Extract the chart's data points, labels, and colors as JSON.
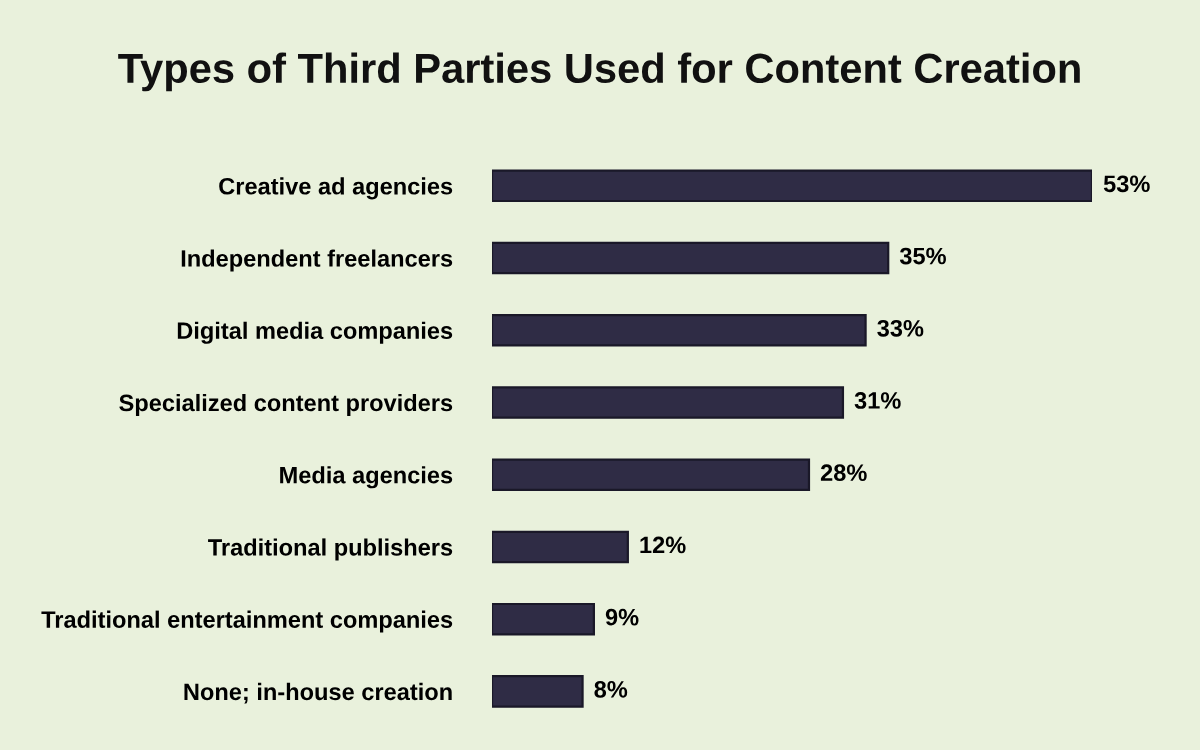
{
  "chart_data": {
    "type": "bar",
    "orientation": "horizontal",
    "title": "Types of Third Parties Used for Content Creation",
    "categories": [
      "Creative ad agencies",
      "Independent freelancers",
      "Digital media companies",
      "Specialized content providers",
      "Media agencies",
      "Traditional publishers",
      "Traditional entertainment companies",
      "None; in-house creation"
    ],
    "values": [
      53,
      35,
      33,
      31,
      28,
      12,
      9,
      8
    ],
    "value_labels": [
      "53%",
      "35%",
      "33%",
      "31%",
      "28%",
      "12%",
      "9%",
      "8%"
    ],
    "color": "#2f2c45",
    "grid": false,
    "legend": false
  }
}
